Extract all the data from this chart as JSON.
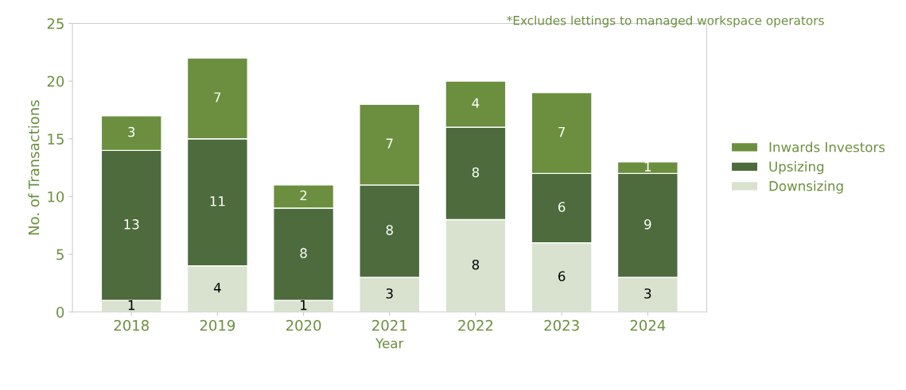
{
  "chart_data": {
    "type": "bar",
    "stacked": true,
    "xlabel": "Year",
    "ylabel": "No. of Transactions",
    "categories": [
      "2018",
      "2019",
      "2020",
      "2021",
      "2022",
      "2023",
      "2024"
    ],
    "series": [
      {
        "name": "Downsizing",
        "color": "#d9e2cf",
        "values": [
          1,
          4,
          1,
          3,
          8,
          6,
          3
        ]
      },
      {
        "name": "Upsizing",
        "color": "#4d6b3c",
        "values": [
          13,
          11,
          8,
          8,
          8,
          6,
          9
        ]
      },
      {
        "name": "Inwards Investors",
        "color": "#6b8f3e",
        "values": [
          3,
          7,
          2,
          7,
          4,
          7,
          1
        ]
      }
    ],
    "ylim": [
      0,
      25
    ],
    "yticks": [
      0,
      5,
      10,
      15,
      20,
      25
    ],
    "grid": false,
    "legend": "right",
    "data_labels": true,
    "annotations": [
      "*Excludes lettings to managed workspace operators"
    ]
  }
}
